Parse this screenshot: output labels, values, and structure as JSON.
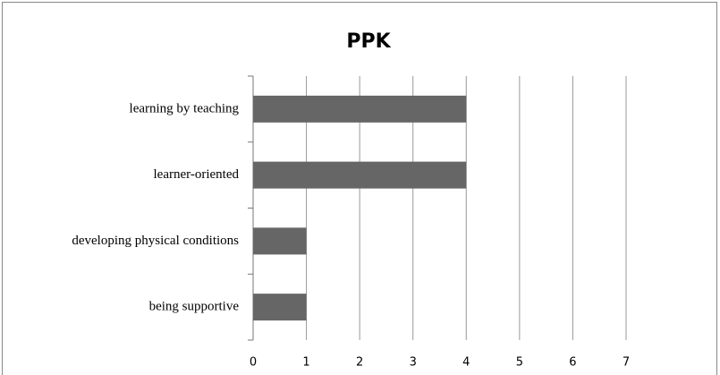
{
  "chart_data": {
    "type": "bar",
    "orientation": "horizontal",
    "title": "PPK",
    "categories": [
      "learning by teaching",
      "learner-oriented",
      "developing physical conditions",
      "being supportive"
    ],
    "values": [
      4,
      4,
      1,
      1
    ],
    "color": "#666666",
    "xlim": [
      0,
      7
    ],
    "xticks": [
      0,
      1,
      2,
      3,
      4,
      5,
      6,
      7
    ],
    "grid": true
  }
}
